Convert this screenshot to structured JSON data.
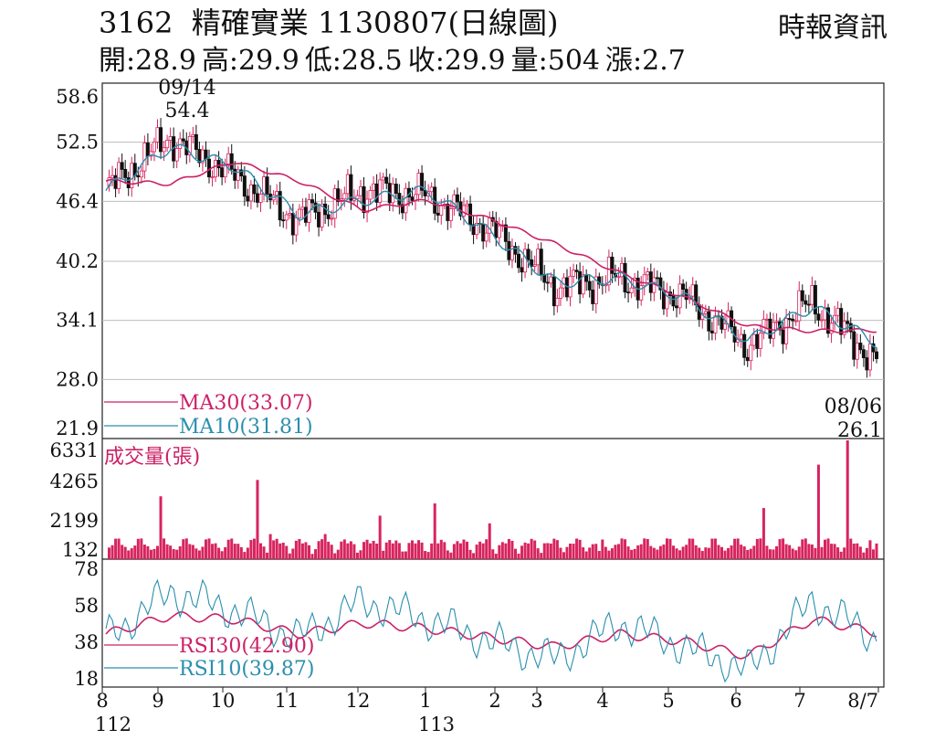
{
  "header": {
    "code": "3162",
    "name": "精確實業",
    "date_chart": "1130807(日線圖)",
    "source": "時報資訊",
    "ohlc": [
      {
        "label": "開",
        "value": "28.9"
      },
      {
        "label": "高",
        "value": "29.9"
      },
      {
        "label": "低",
        "value": "28.5"
      },
      {
        "label": "收",
        "value": "29.9"
      },
      {
        "label": "量",
        "value": "504"
      },
      {
        "label": "漲",
        "value": "2.7"
      }
    ]
  },
  "colors": {
    "ma30": "#cc2166",
    "ma10": "#2a8fae",
    "up": "#d7245e",
    "down": "#111111",
    "volume": "#d7245e",
    "rsi30": "#cc2166",
    "rsi10": "#2a8fae",
    "grid": "#bdbdbd"
  },
  "chart_data": {
    "type": "candlestick",
    "price_axis": {
      "ticks": [
        "58.6",
        "52.5",
        "46.4",
        "40.2",
        "34.1",
        "28.0",
        "21.9"
      ],
      "ylim": [
        21.9,
        58.6
      ]
    },
    "volume_axis": {
      "title": "成交量(張)",
      "ticks": [
        "6331",
        "4265",
        "2199",
        "132"
      ],
      "ylim": [
        132,
        6331
      ]
    },
    "rsi_axis": {
      "ticks": [
        "78",
        "58",
        "38",
        "18"
      ],
      "ylim": [
        18,
        78
      ]
    },
    "x_month_labels": [
      "8",
      "9",
      "10",
      "11",
      "12",
      "1",
      "2",
      "3",
      "4",
      "5",
      "6",
      "7",
      "8/7"
    ],
    "x_year_labels": [
      "112",
      "113"
    ],
    "annotations": {
      "high": {
        "date": "09/14",
        "value": "54.4"
      },
      "low": {
        "date": "08/06",
        "value": "26.1"
      }
    },
    "legend": {
      "ma30": "MA30(33.07)",
      "ma10": "MA10(31.81)",
      "rsi30": "RSI30(42.90)",
      "rsi10": "RSI10(39.87)"
    },
    "close_trend": [
      {
        "month": "8",
        "close": 47.5
      },
      {
        "month": "9",
        "close": 53.0
      },
      {
        "month": "10",
        "close": 49.0
      },
      {
        "month": "11",
        "close": 44.5
      },
      {
        "month": "12",
        "close": 47.5
      },
      {
        "month": "1",
        "close": 47.0
      },
      {
        "month": "2",
        "close": 43.5
      },
      {
        "month": "3",
        "close": 37.5
      },
      {
        "month": "4",
        "close": 38.5
      },
      {
        "month": "5",
        "close": 36.5
      },
      {
        "month": "6",
        "close": 31.5
      },
      {
        "month": "7",
        "close": 36.0
      },
      {
        "month": "8/7",
        "close": 29.9
      }
    ],
    "ma30_trend": [
      48.5,
      48.2,
      50.5,
      48.5,
      45.5,
      46.5,
      44.5,
      42.0,
      39.0,
      36.5,
      33.5,
      33.0,
      33.07
    ],
    "ma10_trend": [
      47.5,
      52.0,
      50.0,
      45.0,
      46.5,
      47.5,
      43.0,
      38.0,
      38.5,
      36.5,
      32.0,
      35.5,
      31.81
    ],
    "rsi30_trend": [
      42,
      52,
      50,
      42,
      48,
      45,
      40,
      35,
      42,
      38,
      30,
      50,
      42.9
    ],
    "rsi10_trend": [
      40,
      65,
      55,
      40,
      60,
      50,
      38,
      28,
      48,
      35,
      22,
      60,
      39.87
    ],
    "volume_peaks": [
      1500,
      4265,
      1200,
      1800,
      3000,
      3800,
      2500,
      1200,
      700,
      900,
      3500,
      6331,
      800
    ]
  }
}
